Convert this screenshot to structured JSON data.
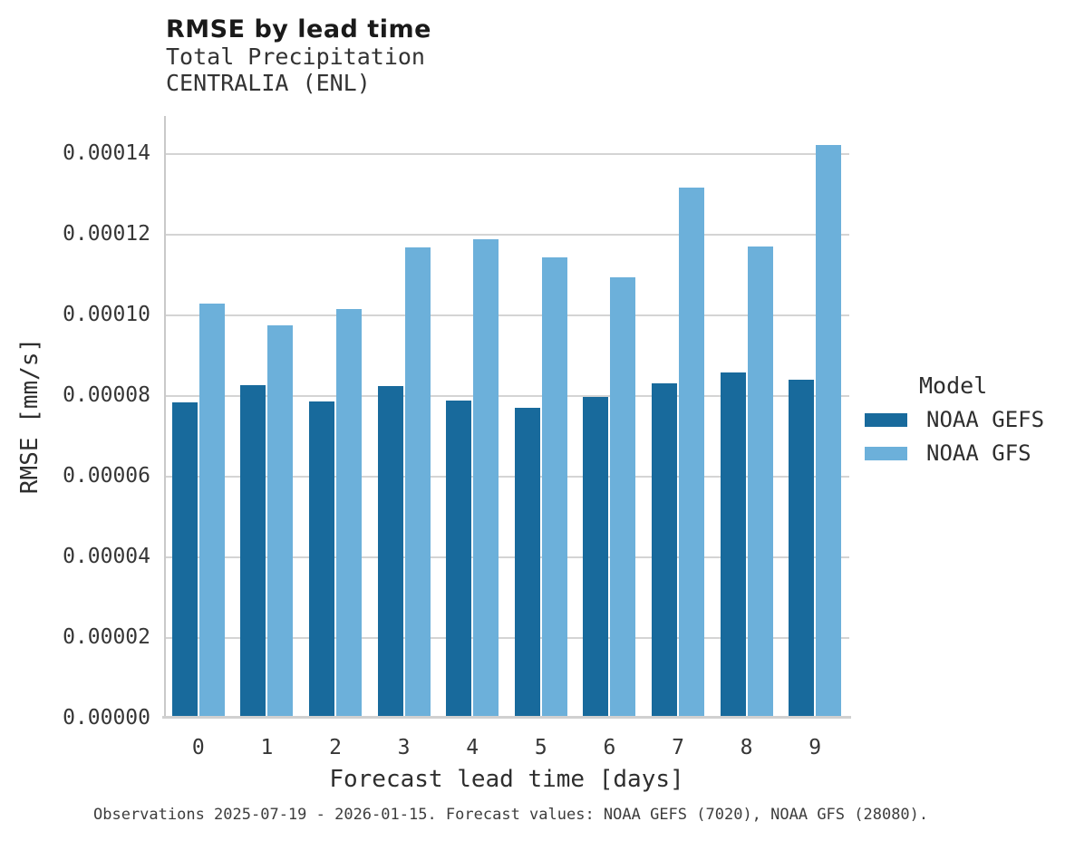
{
  "header": {
    "title": "RMSE by lead time",
    "subtitle1": "Total Precipitation",
    "subtitle2": "CENTRALIA (ENL)"
  },
  "legend": {
    "title": "Model",
    "entries": [
      {
        "label": "NOAA GEFS",
        "color": "#186a9c"
      },
      {
        "label": "NOAA GFS",
        "color": "#6cb0da"
      }
    ]
  },
  "footer": {
    "caption": "Observations 2025-07-19 - 2026-01-15. Forecast values: NOAA GEFS (7020), NOAA GFS (28080)."
  },
  "colors": {
    "gefs_bar": "#186a9c",
    "gfs_bar": "#6cb0da",
    "gridline": "#d4d4d4",
    "spine": "#c9c9c9",
    "text": "#262626"
  },
  "chart_data": {
    "type": "bar",
    "title": "RMSE by lead time",
    "subtitle": [
      "Total Precipitation",
      "CENTRALIA (ENL)"
    ],
    "xlabel": "Forecast lead time [days]",
    "ylabel": "RMSE [mm/s]",
    "categories": [
      "0",
      "1",
      "2",
      "3",
      "4",
      "5",
      "6",
      "7",
      "8",
      "9"
    ],
    "series": [
      {
        "name": "NOAA GEFS",
        "color": "#186a9c",
        "values": [
          7.8e-05,
          8.22e-05,
          7.82e-05,
          8.2e-05,
          7.85e-05,
          7.67e-05,
          7.93e-05,
          8.27e-05,
          8.53e-05,
          8.35e-05
        ]
      },
      {
        "name": "NOAA GFS",
        "color": "#6cb0da",
        "values": [
          0.0001025,
          9.7e-05,
          0.0001012,
          0.0001163,
          0.0001183,
          0.0001138,
          0.0001089,
          0.0001313,
          0.0001166,
          0.0001418
        ]
      }
    ],
    "ylim": [
      0,
      0.0001494
    ],
    "yticks": {
      "values": [
        0.0,
        2e-05,
        4e-05,
        6e-05,
        8e-05,
        0.0001,
        0.00012,
        0.00014
      ],
      "labels": [
        "0.00000",
        "0.00002",
        "0.00004",
        "0.00006",
        "0.00008",
        "0.00010",
        "0.00012",
        "0.00014"
      ]
    },
    "grid": "horizontal",
    "legend_position": "right",
    "legend_title": "Model"
  }
}
